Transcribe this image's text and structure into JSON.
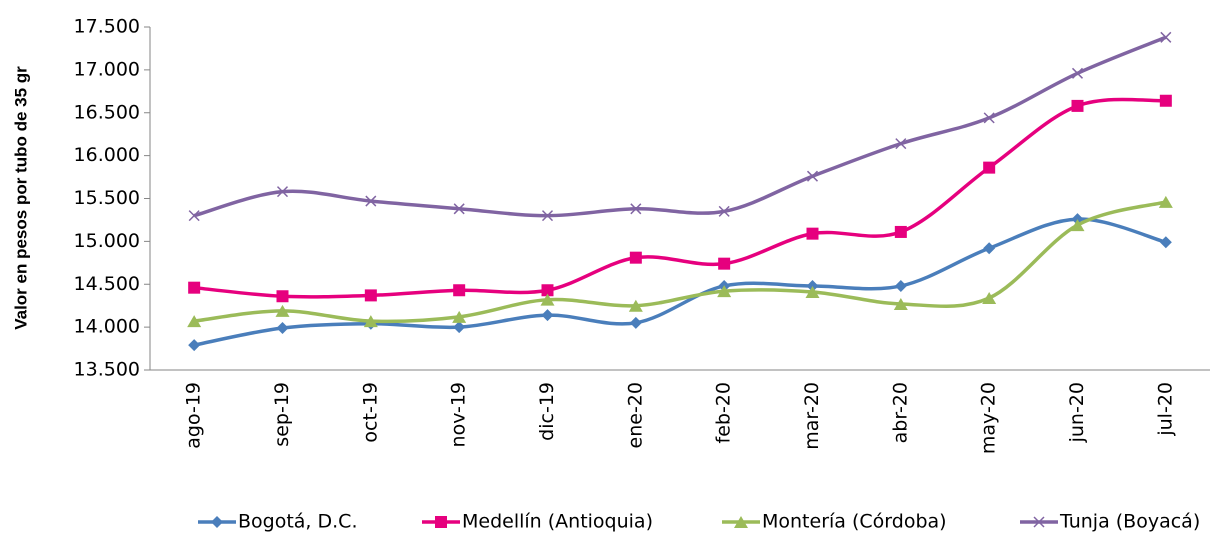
{
  "chart_data": {
    "type": "line",
    "smooth": true,
    "y_label": "Valor en pesos por tubo de 35 gr",
    "categories": [
      "ago-19",
      "sep-19",
      "oct-19",
      "nov-19",
      "dic-19",
      "ene-20",
      "feb-20",
      "mar-20",
      "abr-20",
      "may-20",
      "jun-20",
      "jul-20"
    ],
    "ylim": [
      13500,
      17500
    ],
    "yticks": [
      {
        "value": 13500,
        "label": "13.500"
      },
      {
        "value": 14000,
        "label": "14.000"
      },
      {
        "value": 14500,
        "label": "14.500"
      },
      {
        "value": 15000,
        "label": "15.000"
      },
      {
        "value": 15500,
        "label": "15.500"
      },
      {
        "value": 16000,
        "label": "16.000"
      },
      {
        "value": 16500,
        "label": "16.500"
      },
      {
        "value": 17000,
        "label": "17.000"
      },
      {
        "value": 17500,
        "label": "17.500"
      }
    ],
    "legend": "bottom",
    "series": [
      {
        "name": "Bogotá, D.C.",
        "color": "#4a7ebb",
        "marker": "diamond",
        "values": [
          13790,
          13990,
          14040,
          14000,
          14140,
          14050,
          14480,
          14480,
          14480,
          14920,
          15260,
          14990
        ]
      },
      {
        "name": "Medellín (Antioquia)",
        "color": "#e6007e",
        "marker": "square",
        "values": [
          14460,
          14360,
          14370,
          14430,
          14430,
          14810,
          14740,
          15090,
          15110,
          15860,
          16580,
          16640
        ]
      },
      {
        "name": "Montería (Córdoba)",
        "color": "#9bbb59",
        "marker": "triangle",
        "values": [
          14070,
          14190,
          14070,
          14120,
          14320,
          14250,
          14420,
          14410,
          14270,
          14340,
          15190,
          15460
        ]
      },
      {
        "name": "Tunja (Boyacá)",
        "color": "#8064a2",
        "marker": "x",
        "values": [
          15300,
          15580,
          15470,
          15380,
          15300,
          15380,
          15350,
          15760,
          16140,
          16440,
          16960,
          17380
        ]
      }
    ]
  }
}
